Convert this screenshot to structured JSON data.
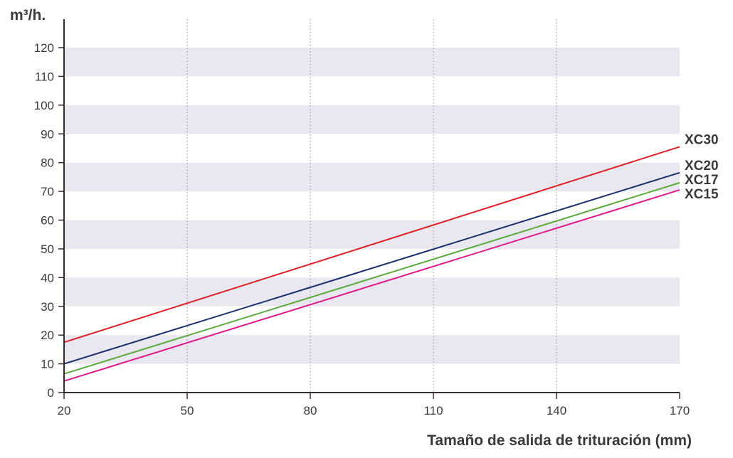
{
  "chart_data": {
    "type": "line",
    "title": "",
    "ylabel": "m³/h.",
    "xlabel": "Tamaño de salida de trituración (mm)",
    "xlim": [
      20,
      170
    ],
    "ylim": [
      0,
      120
    ],
    "x_ticks": [
      20,
      50,
      80,
      110,
      140,
      170
    ],
    "y_ticks": [
      0,
      10,
      20,
      30,
      40,
      50,
      60,
      70,
      80,
      90,
      100,
      110,
      120
    ],
    "grid": "horizontal bands + dotted vertical lines",
    "legend": "labels at line ends (right)",
    "series": [
      {
        "name": "XC30",
        "color": "#e01f26",
        "x": [
          20,
          170
        ],
        "y": [
          17.5,
          85.5
        ]
      },
      {
        "name": "XC20",
        "color": "#1a2f6b",
        "x": [
          20,
          170
        ],
        "y": [
          10,
          76.5
        ]
      },
      {
        "name": "XC17",
        "color": "#5aab3c",
        "x": [
          20,
          170
        ],
        "y": [
          6.5,
          73
        ]
      },
      {
        "name": "XC15",
        "color": "#e0198c",
        "x": [
          20,
          170
        ],
        "y": [
          4,
          70.5
        ]
      }
    ]
  }
}
